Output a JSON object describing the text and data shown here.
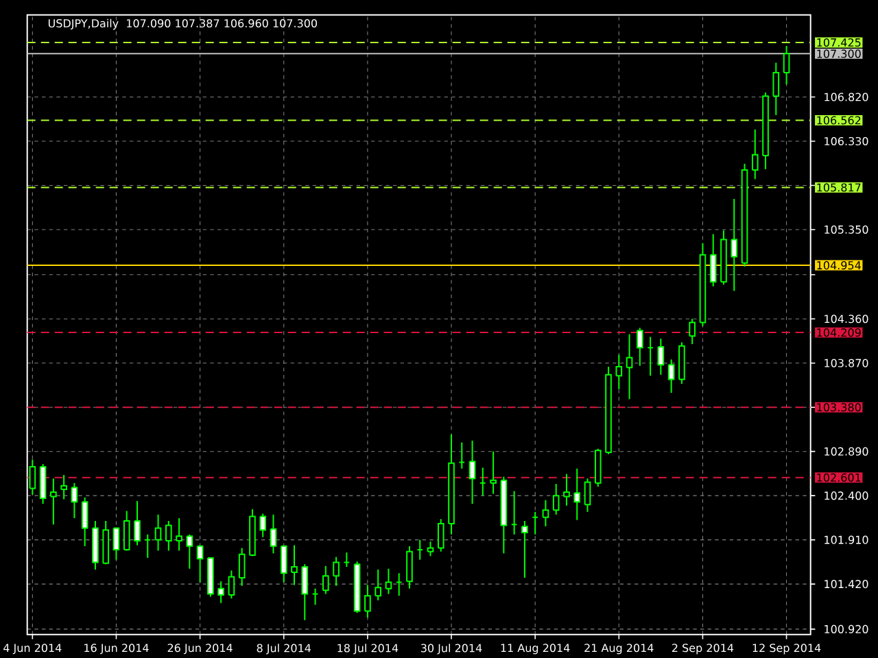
{
  "chart_data": {
    "type": "candlestick",
    "title": "USDJPY,Daily",
    "subtitle": "107.090 107.387 106.960 107.300",
    "categories": [
      "4 Jun 2014",
      null,
      null,
      null,
      null,
      null,
      null,
      null,
      "16 Jun 2014",
      null,
      null,
      null,
      null,
      null,
      null,
      null,
      "26 Jun 2014",
      null,
      null,
      null,
      null,
      null,
      null,
      null,
      "8 Jul 2014",
      null,
      null,
      null,
      null,
      null,
      null,
      null,
      "18 Jul 2014",
      null,
      null,
      null,
      null,
      null,
      null,
      null,
      "30 Jul 2014",
      null,
      null,
      null,
      null,
      null,
      null,
      null,
      "11 Aug 2014",
      null,
      null,
      null,
      null,
      null,
      null,
      null,
      "21 Aug 2014",
      null,
      null,
      null,
      null,
      null,
      null,
      null,
      "2 Sep 2014",
      null,
      null,
      null,
      null,
      null,
      null,
      null,
      "12 Sep 2014"
    ],
    "color": "#00ff00",
    "ohlc": [
      [
        102.48,
        102.8,
        102.41,
        102.72
      ],
      [
        102.72,
        102.75,
        102.31,
        102.37
      ],
      [
        102.39,
        102.59,
        102.08,
        102.44
      ],
      [
        102.47,
        102.63,
        102.36,
        102.51
      ],
      [
        102.49,
        102.54,
        102.15,
        102.33
      ],
      [
        102.33,
        102.38,
        101.84,
        102.04
      ],
      [
        102.04,
        102.12,
        101.58,
        101.66
      ],
      [
        101.65,
        102.12,
        101.64,
        102.02
      ],
      [
        102.04,
        102.04,
        101.69,
        101.8
      ],
      [
        101.8,
        102.23,
        101.79,
        102.12
      ],
      [
        102.12,
        102.34,
        101.85,
        101.9
      ],
      [
        101.91,
        101.97,
        101.71,
        101.91
      ],
      [
        101.91,
        102.19,
        101.79,
        102.04
      ],
      [
        101.9,
        102.12,
        101.79,
        102.07
      ],
      [
        101.9,
        102.15,
        101.79,
        101.95
      ],
      [
        101.95,
        101.97,
        101.59,
        101.84
      ],
      [
        101.84,
        101.84,
        101.44,
        101.7
      ],
      [
        101.71,
        101.71,
        101.28,
        101.31
      ],
      [
        101.37,
        101.45,
        101.21,
        101.3
      ],
      [
        101.3,
        101.57,
        101.26,
        101.5
      ],
      [
        101.49,
        101.82,
        101.4,
        101.75
      ],
      [
        101.74,
        102.25,
        101.73,
        102.17
      ],
      [
        102.17,
        102.2,
        101.94,
        102.02
      ],
      [
        102.03,
        102.19,
        101.76,
        101.84
      ],
      [
        101.84,
        101.84,
        101.44,
        101.54
      ],
      [
        101.55,
        101.85,
        101.41,
        101.61
      ],
      [
        101.61,
        101.64,
        101.02,
        101.31
      ],
      [
        101.31,
        101.37,
        101.19,
        101.31
      ],
      [
        101.35,
        101.62,
        101.31,
        101.51
      ],
      [
        101.51,
        101.72,
        101.4,
        101.66
      ],
      [
        101.66,
        101.77,
        101.61,
        101.66
      ],
      [
        101.64,
        101.67,
        101.1,
        101.12
      ],
      [
        101.12,
        101.41,
        101.05,
        101.29
      ],
      [
        101.29,
        101.58,
        101.24,
        101.38
      ],
      [
        101.37,
        101.59,
        101.31,
        101.44
      ],
      [
        101.44,
        101.54,
        101.29,
        101.44
      ],
      [
        101.45,
        101.84,
        101.37,
        101.78
      ],
      [
        101.8,
        101.91,
        101.69,
        101.8
      ],
      [
        101.78,
        101.89,
        101.73,
        101.82
      ],
      [
        101.82,
        102.14,
        101.78,
        102.09
      ],
      [
        102.09,
        103.08,
        101.97,
        102.76
      ],
      [
        102.77,
        102.99,
        102.7,
        102.77
      ],
      [
        102.78,
        103.01,
        102.31,
        102.59
      ],
      [
        102.54,
        102.71,
        102.4,
        102.54
      ],
      [
        102.54,
        102.89,
        102.42,
        102.57
      ],
      [
        102.57,
        102.61,
        101.76,
        102.07
      ],
      [
        102.08,
        102.45,
        101.97,
        102.08
      ],
      [
        102.06,
        102.12,
        101.49,
        101.99
      ],
      [
        102.16,
        102.22,
        101.97,
        102.16
      ],
      [
        102.16,
        102.35,
        102.06,
        102.24
      ],
      [
        102.24,
        102.53,
        102.19,
        102.4
      ],
      [
        102.39,
        102.64,
        102.29,
        102.44
      ],
      [
        102.43,
        102.7,
        102.13,
        102.33
      ],
      [
        102.3,
        102.59,
        102.22,
        102.55
      ],
      [
        102.54,
        102.92,
        102.5,
        102.9
      ],
      [
        102.88,
        103.83,
        102.86,
        103.74
      ],
      [
        103.73,
        103.96,
        103.58,
        103.83
      ],
      [
        103.82,
        104.19,
        103.47,
        103.93
      ],
      [
        104.23,
        104.26,
        103.84,
        104.04
      ],
      [
        104.04,
        104.16,
        103.73,
        104.04
      ],
      [
        104.05,
        104.14,
        103.74,
        103.85
      ],
      [
        103.85,
        103.91,
        103.54,
        103.69
      ],
      [
        103.69,
        104.1,
        103.64,
        104.06
      ],
      [
        104.17,
        104.36,
        104.08,
        104.32
      ],
      [
        104.32,
        105.2,
        104.28,
        105.07
      ],
      [
        105.07,
        105.3,
        104.72,
        104.77
      ],
      [
        104.77,
        105.34,
        104.74,
        105.24
      ],
      [
        105.24,
        105.69,
        104.67,
        105.05
      ],
      [
        104.98,
        106.08,
        104.94,
        106.01
      ],
      [
        106.01,
        106.46,
        105.91,
        106.18
      ],
      [
        106.17,
        106.87,
        106.02,
        106.83
      ],
      [
        106.83,
        107.2,
        106.62,
        107.09
      ],
      [
        107.09,
        107.387,
        106.96,
        107.3
      ]
    ],
    "ylim": [
      100.86,
      107.73
    ],
    "yticks": [
      {
        "value": 100.92,
        "label": "100.920"
      },
      {
        "value": 101.42,
        "label": "101.420"
      },
      {
        "value": 101.91,
        "label": "101.910"
      },
      {
        "value": 102.4,
        "label": "102.400"
      },
      {
        "value": 102.89,
        "label": "102.890"
      },
      {
        "value": 103.38,
        "label": null
      },
      {
        "value": 103.87,
        "label": "103.870"
      },
      {
        "value": 104.36,
        "label": "104.360"
      },
      {
        "value": 104.85,
        "label": null
      },
      {
        "value": 105.35,
        "label": "105.350"
      },
      {
        "value": 105.84,
        "label": null
      },
      {
        "value": 106.33,
        "label": "106.330"
      },
      {
        "value": 106.82,
        "label": "106.820"
      }
    ],
    "grid": true,
    "ref_lines": [
      {
        "axis": "y",
        "value": 107.425,
        "label": "107.425",
        "color": "#adff2f",
        "line_style": "dashed"
      },
      {
        "axis": "y",
        "value": 107.3,
        "label": "107.300",
        "color": "#c0c0c0",
        "line_style": "solid"
      },
      {
        "axis": "y",
        "value": 106.562,
        "label": "106.562",
        "color": "#adff2f",
        "line_style": "dashed"
      },
      {
        "axis": "y",
        "value": 105.817,
        "label": "105.817",
        "color": "#adff2f",
        "line_style": "dashed"
      },
      {
        "axis": "y",
        "value": 104.954,
        "label": "104.954",
        "color": "#ffd700",
        "line_style": "solid"
      },
      {
        "axis": "y",
        "value": 104.209,
        "label": "104.209",
        "color": "#dc143c",
        "line_style": "dashed"
      },
      {
        "axis": "y",
        "value": 103.38,
        "label": "103.380",
        "color": "#dc143c",
        "line_style": "dashed"
      },
      {
        "axis": "y",
        "value": 102.601,
        "label": "102.601",
        "color": "#dc143c",
        "line_style": "dashed"
      }
    ]
  }
}
